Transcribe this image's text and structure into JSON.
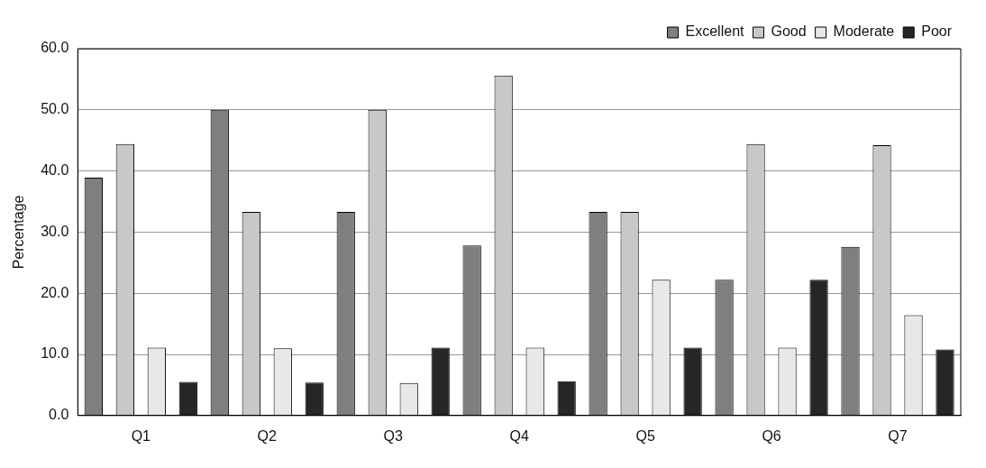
{
  "chart_data": {
    "type": "bar",
    "ylabel": "Percentage",
    "categories": [
      "Q1",
      "Q2",
      "Q3",
      "Q4",
      "Q5",
      "Q6",
      "Q7"
    ],
    "series": [
      {
        "name": "Excellent",
        "color": "#7f7f7f",
        "values": [
          38.9,
          50.0,
          33.3,
          27.8,
          33.3,
          22.2,
          27.6
        ]
      },
      {
        "name": "Good",
        "color": "#c8c8c8",
        "values": [
          44.4,
          33.3,
          50.0,
          55.6,
          33.3,
          44.4,
          44.2
        ]
      },
      {
        "name": "Moderate",
        "color": "#e8e8e8",
        "values": [
          11.1,
          11.0,
          5.3,
          11.1,
          22.2,
          11.1,
          16.4
        ]
      },
      {
        "name": "Poor",
        "color": "#262626",
        "values": [
          5.5,
          5.4,
          11.1,
          5.6,
          11.1,
          22.2,
          10.8
        ]
      }
    ],
    "ylim": [
      0,
      60
    ],
    "yticks": [
      {
        "value": 0,
        "label": "0.0"
      },
      {
        "value": 10,
        "label": "10.0"
      },
      {
        "value": 20,
        "label": "20.0"
      },
      {
        "value": 30,
        "label": "30.0"
      },
      {
        "value": 40,
        "label": "40.0"
      },
      {
        "value": 50,
        "label": "50.0"
      },
      {
        "value": 60,
        "label": "60.0"
      }
    ],
    "grid": "y",
    "legend": "top right"
  }
}
